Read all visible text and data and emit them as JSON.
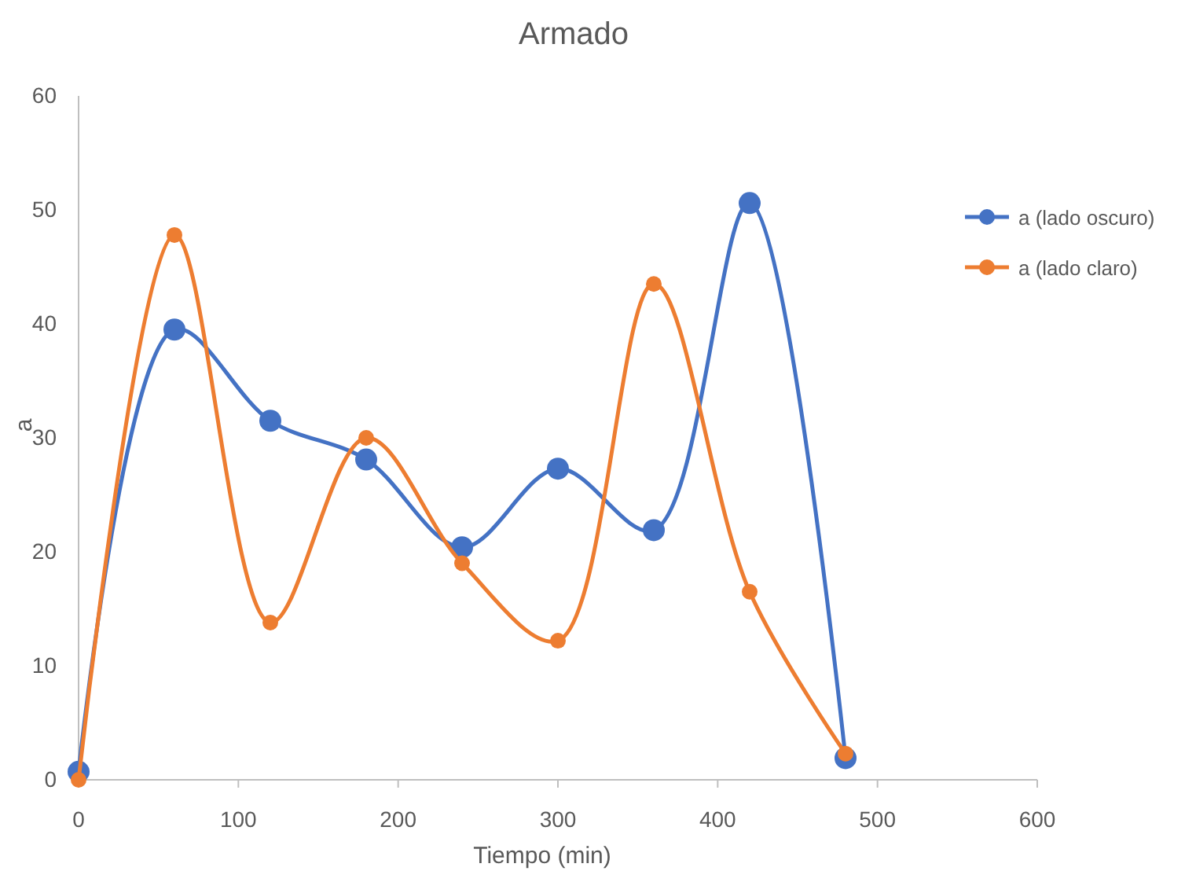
{
  "chart_data": {
    "type": "line",
    "title": "Armado",
    "xlabel": "Tiempo (min)",
    "ylabel": "a",
    "x": [
      0,
      60,
      120,
      180,
      240,
      300,
      360,
      420,
      480
    ],
    "series": [
      {
        "name": "a (lado oscuro)",
        "color": "#4472c4",
        "values": [
          0.7,
          39.5,
          31.5,
          28.1,
          20.4,
          27.3,
          21.9,
          50.6,
          1.9
        ]
      },
      {
        "name": "a (lado claro)",
        "color": "#ed7d31",
        "values": [
          0,
          47.8,
          13.8,
          30,
          19,
          12.2,
          43.5,
          16.5,
          2.3
        ]
      }
    ],
    "xlim": [
      0,
      600
    ],
    "xticks": [
      0,
      100,
      200,
      300,
      400,
      500,
      600
    ],
    "ylim": [
      0,
      60
    ],
    "yticks": [
      0,
      10,
      20,
      30,
      40,
      50,
      60
    ],
    "grid": false,
    "legend": "right",
    "marker": "circle",
    "line_style": "solid"
  }
}
